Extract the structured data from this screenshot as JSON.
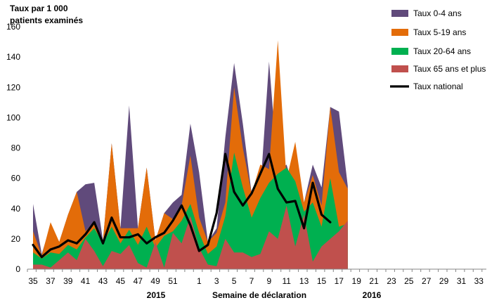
{
  "chart_data": {
    "type": "area",
    "title": "",
    "ylabel_lines": [
      "Taux par 1 000",
      "patients examinés"
    ],
    "xlabel": "Semaine de déclaration",
    "year_labels": [
      "2015",
      "2016"
    ],
    "ylim": [
      0,
      160
    ],
    "yticks": [
      0,
      20,
      40,
      60,
      80,
      100,
      120,
      140,
      160
    ],
    "weeks": [
      35,
      36,
      37,
      38,
      39,
      40,
      41,
      42,
      43,
      44,
      45,
      46,
      47,
      48,
      49,
      50,
      51,
      52,
      53,
      1,
      2,
      3,
      4,
      5,
      6,
      7,
      8,
      9,
      10,
      11,
      12,
      13,
      14,
      15,
      16,
      17,
      18,
      19,
      20,
      21,
      22,
      23,
      24,
      25,
      26,
      27,
      28,
      29,
      30,
      31,
      32,
      33,
      34
    ],
    "xtick_labels": [
      "35",
      "37",
      "39",
      "41",
      "43",
      "45",
      "47",
      "49",
      "51",
      "1",
      "3",
      "5",
      "7",
      "9",
      "11",
      "13",
      "15",
      "17",
      "19",
      "21",
      "23",
      "25",
      "27",
      "29",
      "31",
      "33"
    ],
    "series": [
      {
        "name": "Taux 0-4 ans",
        "color": "#604a7b",
        "values": [
          43,
          10,
          29,
          18,
          36,
          51,
          56,
          57,
          19,
          83,
          27,
          108,
          27,
          67,
          19,
          37,
          44,
          49,
          96,
          64,
          18,
          27,
          87,
          136,
          96,
          50,
          52,
          137,
          64,
          69,
          51,
          44,
          69,
          54,
          107,
          104,
          55
        ]
      },
      {
        "name": "Taux 5-19 ans",
        "color": "#e36c09",
        "values": [
          25,
          9,
          31,
          18,
          36,
          51,
          25,
          31,
          19,
          83,
          27,
          27,
          27,
          67,
          19,
          37,
          33,
          42,
          75,
          34,
          18,
          24,
          44,
          120,
          80,
          50,
          69,
          66,
          151,
          59,
          84,
          44,
          62,
          42,
          107,
          64,
          53
        ]
      },
      {
        "name": "Taux 20-64 ans",
        "color": "#00b050",
        "values": [
          11,
          7,
          11,
          10,
          16,
          13,
          21,
          27,
          17,
          28,
          17,
          26,
          16,
          28,
          14,
          22,
          25,
          32,
          43,
          24,
          10,
          15,
          35,
          77,
          54,
          34,
          47,
          57,
          63,
          67,
          58,
          38,
          44,
          28,
          60,
          28,
          30
        ]
      },
      {
        "name": "Taux 65 ans et plus",
        "color": "#c0504d",
        "values": [
          3,
          3,
          1,
          6,
          11,
          6,
          20,
          12,
          2,
          12,
          10,
          16,
          4,
          1,
          18,
          1,
          24,
          17,
          35,
          14,
          3,
          2,
          20,
          11,
          11,
          8,
          10,
          25,
          20,
          42,
          15,
          36,
          5,
          15,
          20,
          25,
          32
        ]
      },
      {
        "name": "Taux national",
        "color": "#000000",
        "values": [
          16,
          8,
          13,
          15,
          19,
          17,
          23,
          31,
          17,
          34,
          21,
          21,
          23,
          17,
          21,
          24,
          32,
          42,
          29,
          12,
          16,
          37,
          76,
          51,
          42,
          50,
          63,
          76,
          53,
          44,
          45,
          27,
          57,
          36,
          31
        ]
      }
    ]
  }
}
